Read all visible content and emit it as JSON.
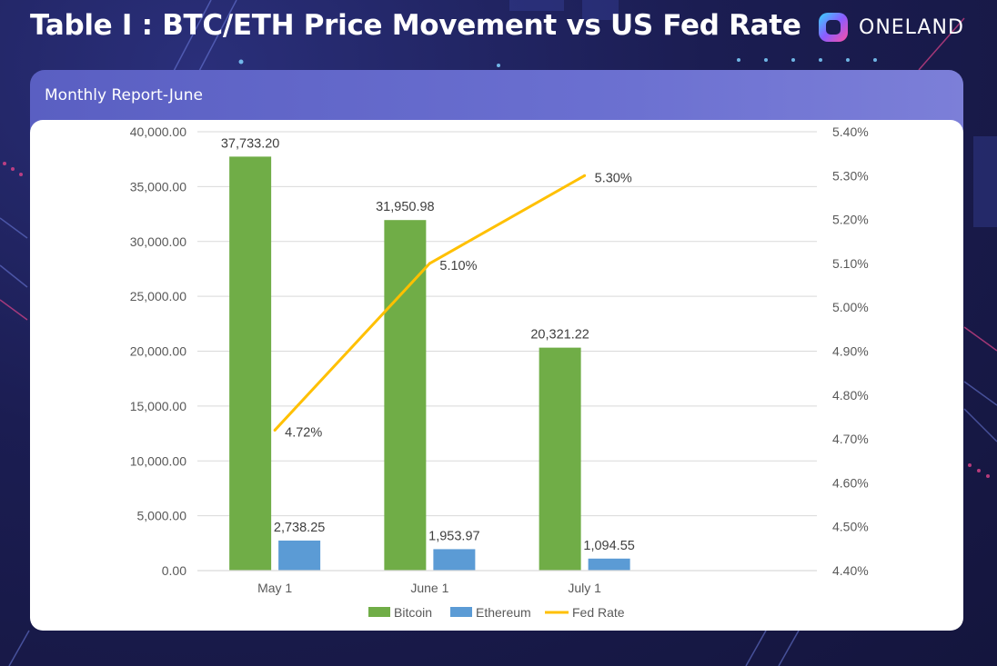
{
  "title": "Table I : BTC/ETH Price Movement vs US Fed Rate",
  "brand": {
    "name": "ONELAND",
    "logo_icon": "oneland-logo-icon"
  },
  "panel": {
    "title": "Monthly Report-June"
  },
  "colors": {
    "bitcoin": "#70ad47",
    "ethereum": "#5b9bd5",
    "fed_rate": "#ffc000",
    "gridline": "#d9d9d9"
  },
  "chart_data": {
    "type": "bar",
    "categories": [
      "May 1",
      "June 1",
      "July 1"
    ],
    "series": [
      {
        "name": "Bitcoin",
        "type": "bar",
        "axis": "left",
        "values": [
          37733.2,
          31950.98,
          20321.22
        ],
        "labels": [
          "37,733.20",
          "31,950.98",
          "20,321.22"
        ]
      },
      {
        "name": "Ethereum",
        "type": "bar",
        "axis": "left",
        "values": [
          2738.25,
          1953.97,
          1094.55
        ],
        "labels": [
          "2,738.25",
          "1,953.97",
          "1,094.55"
        ]
      },
      {
        "name": "Fed Rate",
        "type": "line",
        "axis": "right",
        "values": [
          4.72,
          5.1,
          5.3
        ],
        "labels": [
          "4.72%",
          "5.10%",
          "5.30%"
        ]
      }
    ],
    "y_left": {
      "range": [
        0,
        40000
      ],
      "ticks": [
        0,
        5000,
        10000,
        15000,
        20000,
        25000,
        30000,
        35000,
        40000
      ],
      "tick_labels": [
        "0.00",
        "5,000.00",
        "10,000.00",
        "15,000.00",
        "20,000.00",
        "25,000.00",
        "30,000.00",
        "35,000.00",
        "40,000.00"
      ]
    },
    "y_right": {
      "range": [
        4.4,
        5.4
      ],
      "ticks": [
        4.4,
        4.5,
        4.6,
        4.7,
        4.8,
        4.9,
        5.0,
        5.1,
        5.2,
        5.3,
        5.4
      ],
      "tick_labels": [
        "4.40%",
        "4.50%",
        "4.60%",
        "4.70%",
        "4.80%",
        "4.90%",
        "5.00%",
        "5.10%",
        "5.20%",
        "5.30%",
        "5.40%"
      ]
    },
    "grid": true,
    "legend_position": "bottom"
  }
}
